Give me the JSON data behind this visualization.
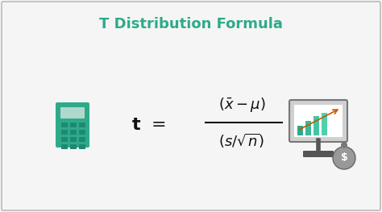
{
  "title": "T Distribution Formula",
  "title_color": "#2eaa8a",
  "title_fontsize": 13,
  "title_fontweight": "bold",
  "bg_color": "#f5f5f5",
  "border_color": "#bbbbbb",
  "formula_color": "#111111",
  "figsize": [
    4.74,
    2.63
  ],
  "dpi": 100,
  "calc_color": "#2eaa8a",
  "calc_screen_color": "#b0d8cc",
  "calc_btn_color": "#1d8a70",
  "monitor_body_color": "#d0d0d0",
  "monitor_screen_color": "#ffffff",
  "monitor_stand_color": "#555555",
  "bag_color": "#888888",
  "bar_colors": [
    "#2eaa8a",
    "#3ab898",
    "#44c4a2",
    "#50d0ac"
  ],
  "line_color": "#cc6600"
}
